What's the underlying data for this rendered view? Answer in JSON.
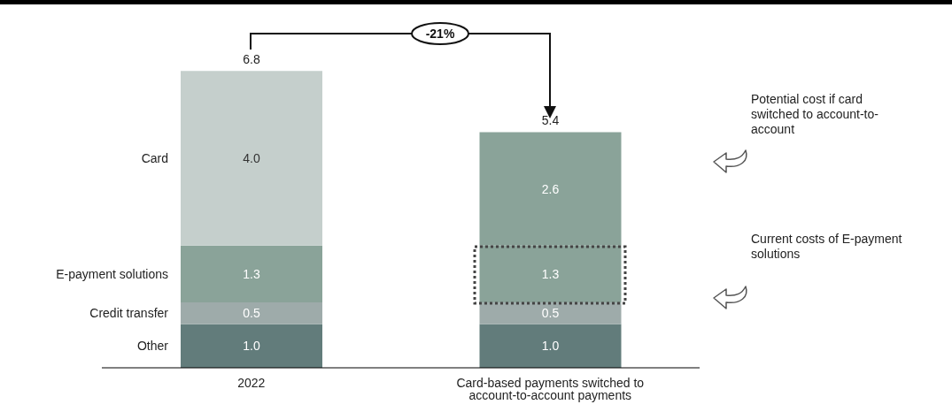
{
  "chart_data": {
    "type": "bar",
    "stacked": true,
    "categories": [
      "2022",
      "Card-based payments switched to account-to-account payments"
    ],
    "series": [
      {
        "name": "Other",
        "color": "#627c7b",
        "values": [
          1.0,
          1.0
        ],
        "value_labels": [
          "1.0",
          "1.0"
        ]
      },
      {
        "name": "Credit transfer",
        "color": "#9eabaa",
        "values": [
          0.5,
          0.5
        ],
        "value_labels": [
          "0.5",
          "0.5"
        ]
      },
      {
        "name": "E-payment solutions",
        "color": "#8aa399",
        "values": [
          1.3,
          1.3
        ],
        "value_labels": [
          "1.3",
          "1.3"
        ]
      },
      {
        "name": "Card",
        "colors": [
          "#c5cfcc",
          "#8aa399"
        ],
        "values": [
          4.0,
          2.6
        ],
        "value_labels": [
          "4.0",
          "2.6"
        ]
      }
    ],
    "totals": [
      "6.8",
      "5.4"
    ],
    "annotations": [
      "-21%",
      "Potential cost if card switched to account-to-account",
      "Current costs of E-payment solutions"
    ]
  }
}
